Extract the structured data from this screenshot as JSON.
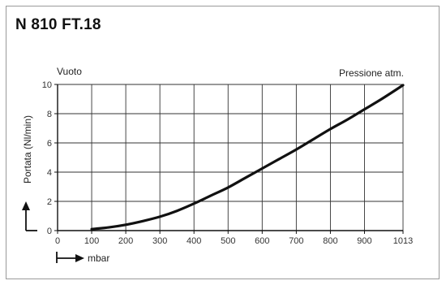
{
  "title": "N 810 FT.18",
  "chart_data": {
    "type": "line",
    "title": "N 810 FT.18",
    "xlabel": "mbar",
    "ylabel": "Portata (Nl/min)",
    "x_ticks": [
      0,
      100,
      200,
      300,
      400,
      500,
      600,
      700,
      800,
      900,
      1013
    ],
    "y_ticks": [
      0,
      2,
      4,
      6,
      8,
      10
    ],
    "xlim": [
      0,
      1013
    ],
    "ylim": [
      0,
      10
    ],
    "grid": true,
    "annotations": {
      "left": "Vuoto",
      "right": "Pressione atm."
    },
    "series": [
      {
        "x": [
          100,
          150,
          200,
          250,
          300,
          350,
          400,
          450,
          500,
          550,
          600,
          650,
          700,
          750,
          800,
          850,
          900,
          950,
          1013
        ],
        "y": [
          0.1,
          0.22,
          0.4,
          0.65,
          0.95,
          1.35,
          1.85,
          2.4,
          2.95,
          3.6,
          4.25,
          4.9,
          5.55,
          6.25,
          6.95,
          7.6,
          8.3,
          9.0,
          9.95
        ]
      }
    ]
  }
}
